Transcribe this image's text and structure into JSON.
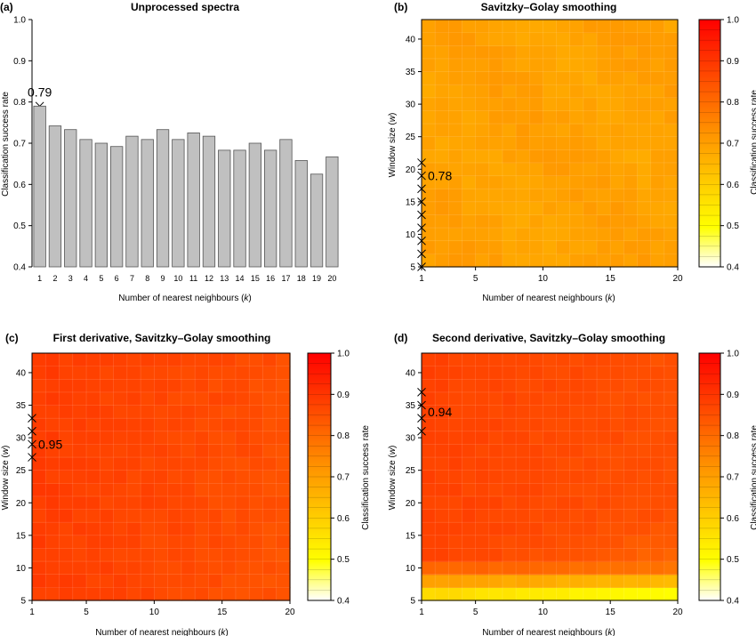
{
  "colors": {
    "bar_fill": "#c0c0c0",
    "bar_stroke": "#555555",
    "colorbar_stops": [
      "#ffffff",
      "#ffff00",
      "#ff8000",
      "#ff0000"
    ]
  },
  "colorbar": {
    "label": "Classification success rate",
    "range": [
      0.4,
      1.0
    ],
    "ticks": [
      "0.4",
      "0.5",
      "0.6",
      "0.7",
      "0.8",
      "0.9",
      "1.0"
    ]
  },
  "chart_data": [
    {
      "id": "a",
      "panel_letter": "(a)",
      "type": "bar",
      "title": "Unprocessed spectra",
      "xlabel_main": "Number of nearest neighbours (",
      "xlabel_var": "k",
      "xlabel_close": ")",
      "ylabel": "Classification success rate",
      "ylim": [
        0.4,
        1.0
      ],
      "yticks": [
        "0.4",
        "0.5",
        "0.6",
        "0.7",
        "0.8",
        "0.9",
        "1.0"
      ],
      "categories": [
        "1",
        "2",
        "3",
        "4",
        "5",
        "6",
        "7",
        "8",
        "9",
        "10",
        "11",
        "12",
        "13",
        "14",
        "15",
        "16",
        "17",
        "18",
        "19",
        "20"
      ],
      "values": [
        0.79,
        0.742,
        0.733,
        0.709,
        0.7,
        0.692,
        0.717,
        0.709,
        0.733,
        0.709,
        0.725,
        0.717,
        0.683,
        0.683,
        0.7,
        0.683,
        0.709,
        0.658,
        0.625,
        0.667
      ],
      "best": {
        "k": 1,
        "value": 0.79,
        "label": "0.79"
      }
    },
    {
      "id": "b",
      "panel_letter": "(b)",
      "type": "heatmap",
      "title": "Savitzky–Golay smoothing",
      "xlabel_main": "Number of nearest neighbours (",
      "xlabel_var": "k",
      "xlabel_close": ")",
      "ylabel_main": "Window size (",
      "ylabel_var": "w",
      "ylabel_close": ")",
      "xrange": [
        1,
        20
      ],
      "yrange": [
        5,
        43
      ],
      "xticks": [
        "1",
        "5",
        "10",
        "15",
        "20"
      ],
      "yticks": [
        "5",
        "10",
        "15",
        "20",
        "25",
        "30",
        "35",
        "40"
      ],
      "value_range": [
        0.68,
        0.78
      ],
      "best": {
        "k": 1,
        "w": [
          5,
          7,
          9,
          11,
          13,
          15,
          17,
          19,
          21
        ],
        "label": "0.78",
        "label_w": 19
      }
    },
    {
      "id": "c",
      "panel_letter": "(c)",
      "type": "heatmap",
      "title": "First derivative, Savitzky–Golay smoothing",
      "xlabel_main": "Number of nearest neighbours (",
      "xlabel_var": "k",
      "xlabel_close": ")",
      "ylabel_main": "Window size (",
      "ylabel_var": "w",
      "ylabel_close": ")",
      "xrange": [
        1,
        20
      ],
      "yrange": [
        5,
        43
      ],
      "xticks": [
        "1",
        "5",
        "10",
        "15",
        "20"
      ],
      "yticks": [
        "5",
        "10",
        "15",
        "20",
        "25",
        "30",
        "35",
        "40"
      ],
      "value_range": [
        0.85,
        0.95
      ],
      "best": {
        "k": 1,
        "w": [
          27,
          29,
          31,
          33
        ],
        "label": "0.95",
        "label_w": 29
      }
    },
    {
      "id": "d",
      "panel_letter": "(d)",
      "type": "heatmap",
      "title": "Second derivative, Savitzky–Golay smoothing",
      "xlabel_main": "Number of nearest neighbours (",
      "xlabel_var": "k",
      "xlabel_close": ")",
      "ylabel_main": "Window size (",
      "ylabel_var": "w",
      "ylabel_close": ")",
      "xrange": [
        1,
        20
      ],
      "yrange": [
        5,
        43
      ],
      "xticks": [
        "1",
        "5",
        "10",
        "15",
        "20"
      ],
      "yticks": [
        "5",
        "10",
        "15",
        "20",
        "25",
        "30",
        "35",
        "40"
      ],
      "value_range": [
        0.55,
        0.94
      ],
      "best": {
        "k": 1,
        "w": [
          31,
          33,
          35,
          37
        ],
        "label": "0.94",
        "label_w": 34
      }
    }
  ]
}
